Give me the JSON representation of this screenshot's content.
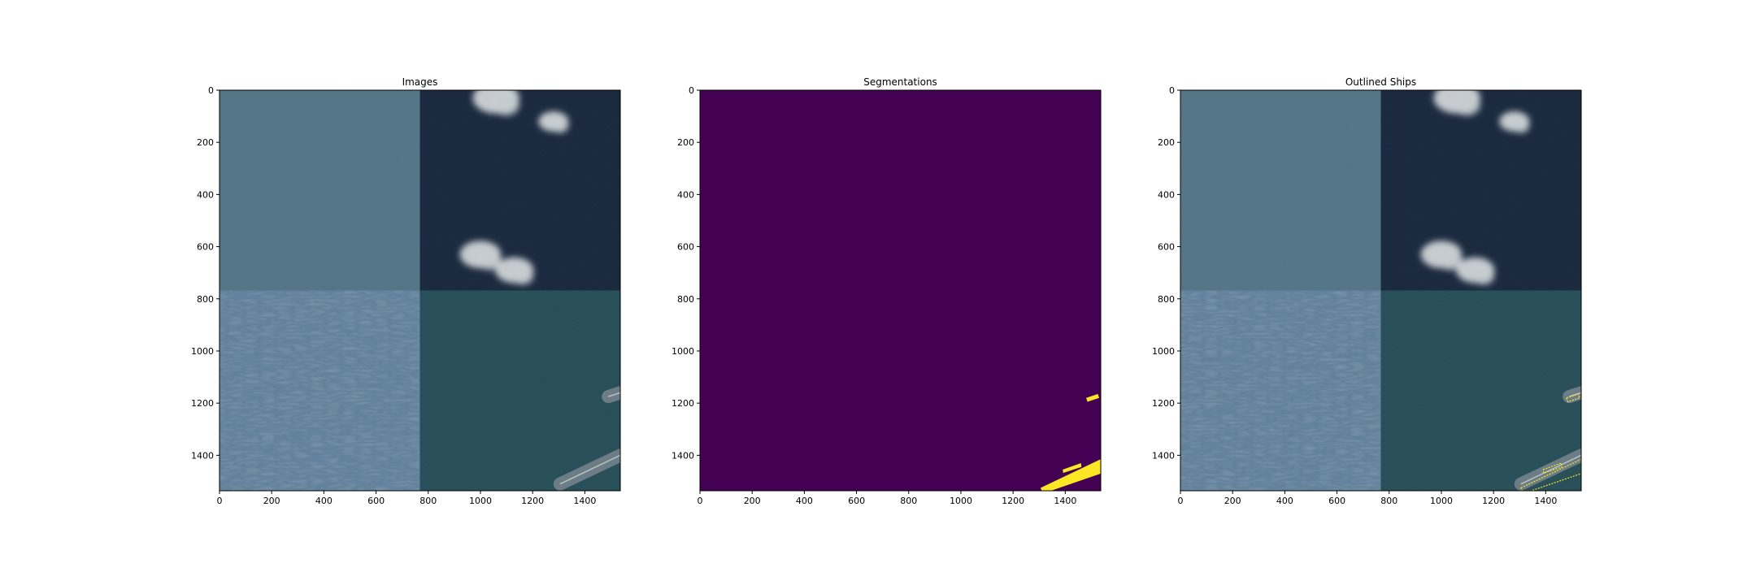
{
  "figure": {
    "background": "#ffffff"
  },
  "chart_data": [
    {
      "type": "heatmap",
      "title": "Images",
      "xlabel": "",
      "ylabel": "",
      "xlim": [
        0,
        1536
      ],
      "ylim": [
        1536,
        0
      ],
      "xticks": [
        0,
        200,
        400,
        600,
        800,
        1000,
        1200,
        1400
      ],
      "yticks": [
        0,
        200,
        400,
        600,
        800,
        1000,
        1200,
        1400
      ],
      "grid": false,
      "content": "satellite-image-mosaic",
      "tiles": [
        {
          "x_range": [
            0,
            768
          ],
          "y_range": [
            0,
            768
          ],
          "color": "#4f7282"
        },
        {
          "x_range": [
            768,
            1536
          ],
          "y_range": [
            0,
            768
          ],
          "color": "#15243a"
        },
        {
          "x_range": [
            0,
            768
          ],
          "y_range": [
            768,
            1536
          ],
          "color": "#5f7f9a"
        },
        {
          "x_range": [
            768,
            1536
          ],
          "y_range": [
            768,
            1536
          ],
          "color": "#234b55"
        }
      ],
      "clouds": [
        {
          "x": 1060,
          "y": 30,
          "r": 85
        },
        {
          "x": 1280,
          "y": 120,
          "r": 55
        },
        {
          "x": 1000,
          "y": 630,
          "r": 75
        },
        {
          "x": 1130,
          "y": 690,
          "r": 70
        }
      ],
      "ships": [
        {
          "x": [
            1305,
            1536
          ],
          "y": [
            1510,
            1400
          ]
        },
        {
          "x": [
            1490,
            1536
          ],
          "y": [
            1175,
            1160
          ]
        }
      ]
    },
    {
      "type": "heatmap",
      "title": "Segmentations",
      "xlabel": "",
      "ylabel": "",
      "xlim": [
        0,
        1536
      ],
      "ylim": [
        1536,
        0
      ],
      "xticks": [
        0,
        200,
        400,
        600,
        800,
        1000,
        1200,
        1400
      ],
      "yticks": [
        0,
        200,
        400,
        600,
        800,
        1000,
        1200,
        1400
      ],
      "grid": false,
      "colormap": "viridis",
      "background_color": "#440154",
      "mask_color": "#fde725",
      "masks": [
        {
          "polygon": [
            [
              1305,
              1525
            ],
            [
              1536,
              1415
            ],
            [
              1536,
              1470
            ],
            [
              1345,
              1536
            ],
            [
              1310,
              1536
            ]
          ]
        },
        {
          "polygon": [
            [
              1480,
              1180
            ],
            [
              1525,
              1165
            ],
            [
              1530,
              1180
            ],
            [
              1485,
              1195
            ]
          ]
        },
        {
          "polygon": [
            [
              1390,
              1455
            ],
            [
              1460,
              1430
            ],
            [
              1462,
              1445
            ],
            [
              1392,
              1468
            ]
          ]
        }
      ]
    },
    {
      "type": "heatmap",
      "title": "Outlined Ships",
      "xlabel": "",
      "ylabel": "",
      "xlim": [
        0,
        1536
      ],
      "ylim": [
        1536,
        0
      ],
      "xticks": [
        0,
        200,
        400,
        600,
        800,
        1000,
        1200,
        1400
      ],
      "yticks": [
        0,
        200,
        400,
        600,
        800,
        1000,
        1200,
        1400
      ],
      "grid": false,
      "content": "satellite-image-mosaic-with-ship-outlines",
      "outline_color": "#fde725"
    }
  ]
}
